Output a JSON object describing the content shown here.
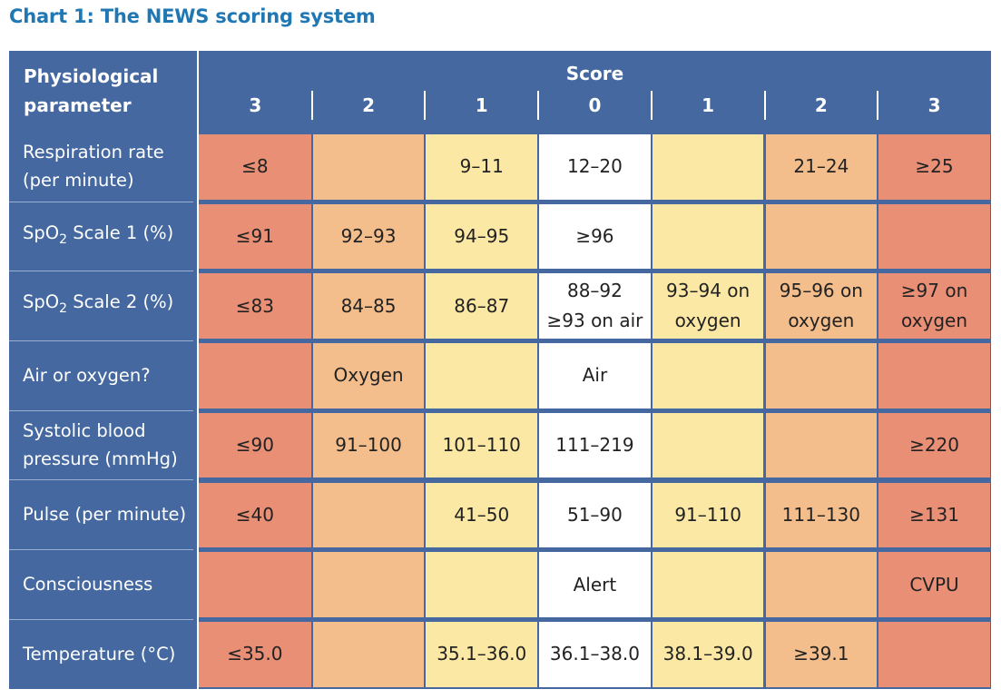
{
  "title": "Chart 1:  The NEWS scoring system",
  "header": {
    "param_line1": "Physiological",
    "param_line2": "parameter",
    "score_label": "Score",
    "columns": [
      "3",
      "2",
      "1",
      "0",
      "1",
      "2",
      "3"
    ]
  },
  "colors": {
    "header": "#44689f",
    "score3": "#e88f76",
    "score2": "#f3be8c",
    "score1": "#fbe8a4",
    "score0": "#ffffff",
    "title": "#1f78b4"
  },
  "rows": [
    {
      "param_line1": "Respiration rate",
      "param_line2": "(per minute)",
      "cells": [
        "≤8",
        "",
        "9–11",
        "12–20",
        "",
        "21–24",
        "≥25"
      ]
    },
    {
      "param_pre": "SpO",
      "param_sub": "2",
      "param_post": " Scale 1 (%)",
      "cells": [
        "≤91",
        "92–93",
        "94–95",
        "≥96",
        "",
        "",
        ""
      ]
    },
    {
      "param_pre": "SpO",
      "param_sub": "2",
      "param_post": " Scale 2 (%)",
      "cells": [
        "≤83",
        "84–85",
        "86–87",
        "88–92\n≥93 on air",
        "93–94 on\noxygen",
        "95–96 on\noxygen",
        "≥97 on\noxygen"
      ]
    },
    {
      "param_line1": "Air or oxygen?",
      "cells": [
        "",
        "Oxygen",
        "",
        "Air",
        "",
        "",
        ""
      ]
    },
    {
      "param_line1": "Systolic blood",
      "param_line2": "pressure (mmHg)",
      "cells": [
        "≤90",
        "91–100",
        "101–110",
        "111–219",
        "",
        "",
        "≥220"
      ]
    },
    {
      "param_line1": "Pulse (per minute)",
      "cells": [
        "≤40",
        "",
        "41–50",
        "51–90",
        "91–110",
        "111–130",
        "≥131"
      ]
    },
    {
      "param_line1": "Consciousness",
      "cells": [
        "",
        "",
        "",
        "Alert",
        "",
        "",
        "CVPU"
      ]
    },
    {
      "param_line1": "Temperature (°C)",
      "cells": [
        "≤35.0",
        "",
        "35.1–36.0",
        "36.1–38.0",
        "38.1–39.0",
        "≥39.1",
        ""
      ]
    }
  ]
}
